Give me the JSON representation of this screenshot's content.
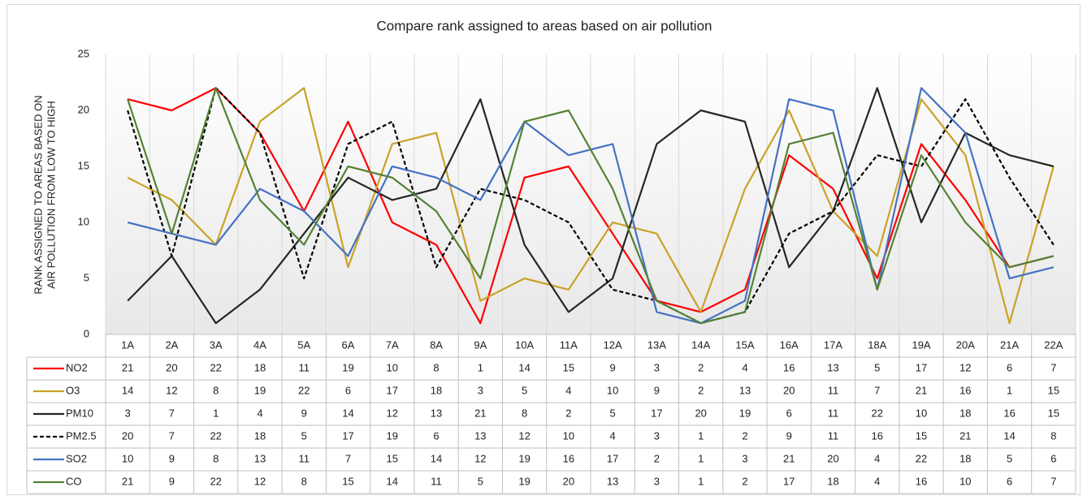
{
  "chart_data": {
    "type": "line",
    "title": "Compare rank assigned to areas based on air pollution",
    "y_label": [
      "RANK ASSIGNED TO AREAS BASED ON",
      "AIR POLLUTION FROM LOW TO HIGH"
    ],
    "categories": [
      "1A",
      "2A",
      "3A",
      "4A",
      "5A",
      "6A",
      "7A",
      "8A",
      "9A",
      "10A",
      "11A",
      "12A",
      "13A",
      "14A",
      "15A",
      "16A",
      "17A",
      "18A",
      "19A",
      "20A",
      "21A",
      "22A"
    ],
    "ylim": [
      0,
      25
    ],
    "yticks": [
      0,
      5,
      10,
      15,
      20,
      25
    ],
    "grid": "vertical",
    "data_table": true,
    "series": [
      {
        "name": "NO2",
        "color": "#ff0000",
        "dashed": false,
        "values": [
          21,
          20,
          22,
          18,
          11,
          19,
          10,
          8,
          1,
          14,
          15,
          9,
          3,
          2,
          4,
          16,
          13,
          5,
          17,
          12,
          6,
          7
        ]
      },
      {
        "name": "O3",
        "color": "#c9a227",
        "dashed": false,
        "values": [
          14,
          12,
          8,
          19,
          22,
          6,
          17,
          18,
          3,
          5,
          4,
          10,
          9,
          2,
          13,
          20,
          11,
          7,
          21,
          16,
          1,
          15
        ]
      },
      {
        "name": "PM10",
        "color": "#262626",
        "dashed": false,
        "values": [
          3,
          7,
          1,
          4,
          9,
          14,
          12,
          13,
          21,
          8,
          2,
          5,
          17,
          20,
          19,
          6,
          11,
          22,
          10,
          18,
          16,
          15
        ]
      },
      {
        "name": "PM2.5",
        "color": "#000000",
        "dashed": true,
        "values": [
          20,
          7,
          22,
          18,
          5,
          17,
          19,
          6,
          13,
          12,
          10,
          4,
          3,
          1,
          2,
          9,
          11,
          16,
          15,
          21,
          14,
          8
        ]
      },
      {
        "name": "SO2",
        "color": "#4472c4",
        "dashed": false,
        "values": [
          10,
          9,
          8,
          13,
          11,
          7,
          15,
          14,
          12,
          19,
          16,
          17,
          2,
          1,
          3,
          21,
          20,
          4,
          22,
          18,
          5,
          6
        ]
      },
      {
        "name": "CO",
        "color": "#548235",
        "dashed": false,
        "values": [
          21,
          9,
          22,
          12,
          8,
          15,
          14,
          11,
          5,
          19,
          20,
          13,
          3,
          1,
          2,
          17,
          18,
          4,
          16,
          10,
          6,
          7
        ]
      }
    ]
  }
}
